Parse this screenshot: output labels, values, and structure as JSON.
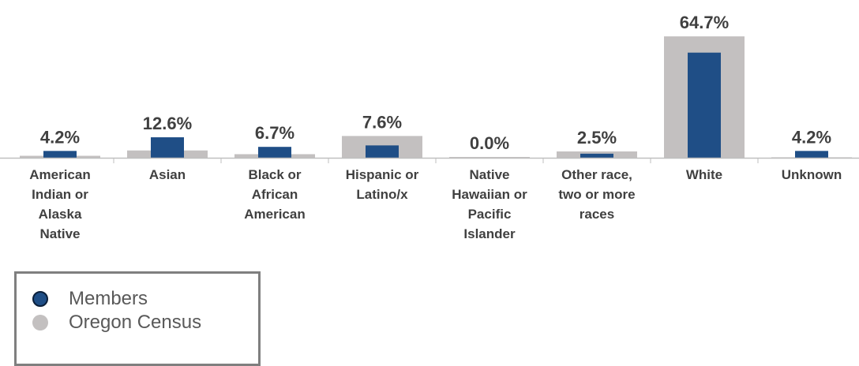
{
  "chart_data": {
    "type": "bar",
    "categories": [
      "American Indian or Alaska Native",
      "Asian",
      "Black or African American",
      "Hispanic or Latino/x",
      "Native Hawaiian or Pacific Islander",
      "Other race, two or more races",
      "White",
      "Unknown"
    ],
    "category_label_lines": [
      [
        "American",
        "Indian or",
        "Alaska",
        "Native"
      ],
      [
        "Asian"
      ],
      [
        "Black or",
        "African",
        "American"
      ],
      [
        "Hispanic or",
        "Latino/x"
      ],
      [
        "Native",
        "Hawaiian or",
        "Pacific",
        "Islander"
      ],
      [
        "Other race,",
        "two or more",
        "races"
      ],
      [
        "White"
      ],
      [
        "Unknown"
      ]
    ],
    "series": [
      {
        "name": "Members",
        "values": [
          4.2,
          12.6,
          6.7,
          7.6,
          0.0,
          2.5,
          64.7,
          4.2
        ]
      },
      {
        "name": "Oregon Census",
        "values": [
          1.2,
          4.5,
          2.2,
          13.4,
          0.5,
          3.9,
          74.7,
          0.3
        ]
      }
    ],
    "data_labels": [
      "4.2%",
      "12.6%",
      "6.7%",
      "7.6%",
      "0.0%",
      "2.5%",
      "64.7%",
      "4.2%"
    ],
    "ylim": [
      0,
      75
    ],
    "grid": false,
    "legend_position": "bottom-left",
    "colors": {
      "Members": "#1f4e86",
      "Oregon Census": "#c3c0c0",
      "axis": "#bfbfbf",
      "text": "#404040"
    }
  },
  "legend": {
    "items": [
      {
        "label": "Members",
        "color": "#1f4e86"
      },
      {
        "label": "Oregon Census",
        "color": "#c3c0c0"
      }
    ]
  }
}
